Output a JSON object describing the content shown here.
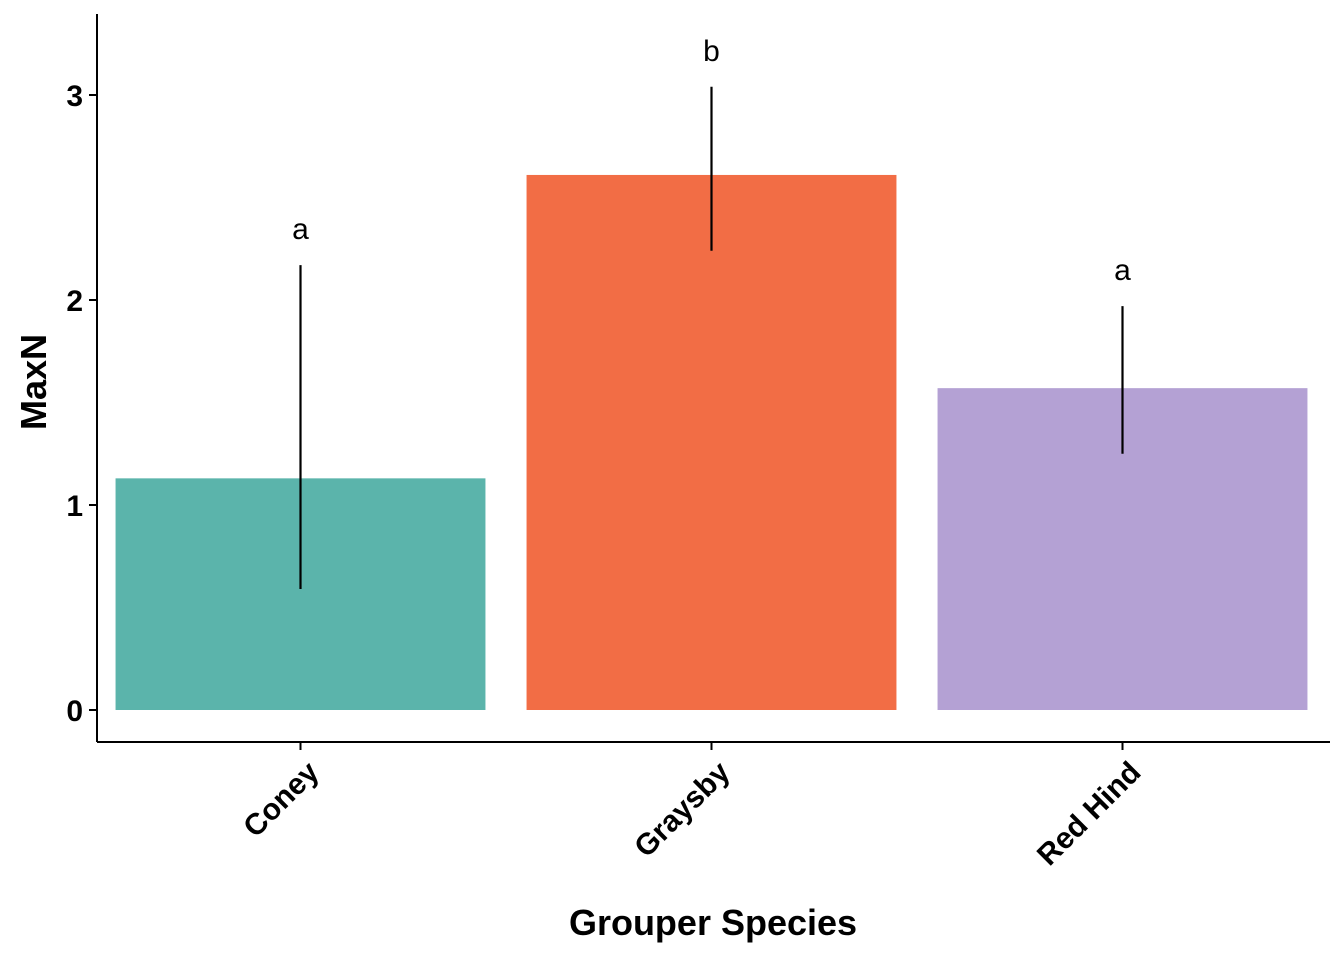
{
  "chart_data": {
    "type": "bar",
    "title": "",
    "xlabel": "Grouper Species",
    "ylabel": "MaxN",
    "ylim": [
      -0.15,
      3.35
    ],
    "yticks": [
      0,
      1,
      2,
      3
    ],
    "grid": false,
    "categories": [
      "Coney",
      "Graysby",
      "Red Hind"
    ],
    "values": [
      1.13,
      2.61,
      1.57
    ],
    "error_low": [
      0.59,
      2.24,
      1.25
    ],
    "error_high": [
      2.17,
      3.04,
      1.97
    ],
    "significance_labels": [
      "a",
      "b",
      "a"
    ],
    "colors": [
      "#5bb4ab",
      "#f26d45",
      "#b4a1d4"
    ],
    "x_tick_rotation_deg": -45
  }
}
